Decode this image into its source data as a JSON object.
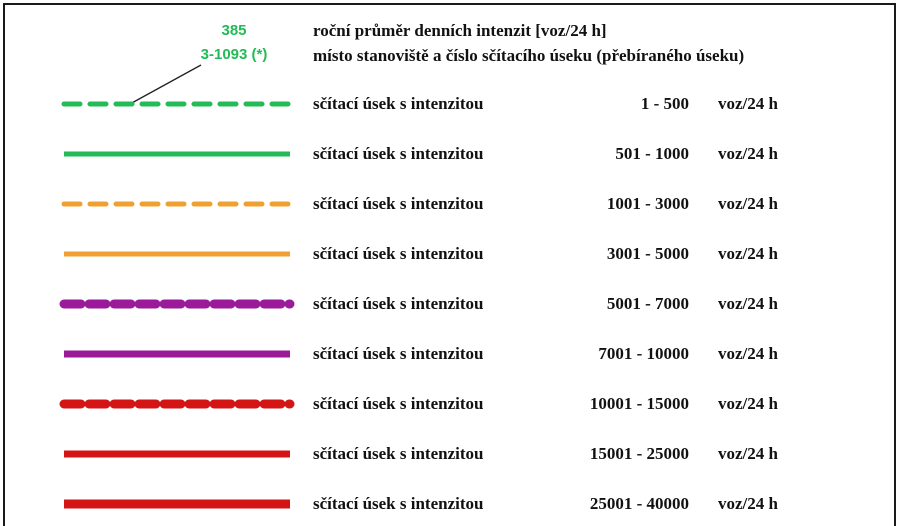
{
  "sample": {
    "intensity_value": "385",
    "section_code": "3-1093 (*)"
  },
  "header": {
    "line1": "roční průměr denních intenzit [voz/24 h]",
    "line2": "místo stanoviště a číslo sčítacího úseku (přebíraného úseku)"
  },
  "legend": {
    "rows": [
      {
        "description": "sčítací úsek s intenzitou",
        "range": "1 - 500",
        "unit": "voz/24 h",
        "color": "#22bb55",
        "style": "dashed",
        "weight": "thin"
      },
      {
        "description": "sčítací úsek s intenzitou",
        "range": "501 - 1000",
        "unit": "voz/24 h",
        "color": "#22bb55",
        "style": "solid",
        "weight": "thin"
      },
      {
        "description": "sčítací úsek s intenzitou",
        "range": "1001 - 3000",
        "unit": "voz/24 h",
        "color": "#f0a030",
        "style": "dashed",
        "weight": "thin"
      },
      {
        "description": "sčítací úsek s intenzitou",
        "range": "3001 - 5000",
        "unit": "voz/24 h",
        "color": "#f0a030",
        "style": "solid",
        "weight": "thin"
      },
      {
        "description": "sčítací úsek s intenzitou",
        "range": "5001 - 7000",
        "unit": "voz/24 h",
        "color": "#9a1a9a",
        "style": "dashed",
        "weight": "thick"
      },
      {
        "description": "sčítací úsek s intenzitou",
        "range": "7001 - 10000",
        "unit": "voz/24 h",
        "color": "#9a1a9a",
        "style": "solid",
        "weight": "medium"
      },
      {
        "description": "sčítací úsek s intenzitou",
        "range": "10001 - 15000",
        "unit": "voz/24 h",
        "color": "#d41515",
        "style": "dashed",
        "weight": "thick"
      },
      {
        "description": "sčítací úsek s intenzitou",
        "range": "15001 - 25000",
        "unit": "voz/24 h",
        "color": "#d41515",
        "style": "solid",
        "weight": "medium"
      },
      {
        "description": "sčítací úsek s intenzitou",
        "range": "25001 - 40000",
        "unit": "voz/24 h",
        "color": "#d41515",
        "style": "solid",
        "weight": "thick"
      }
    ]
  }
}
